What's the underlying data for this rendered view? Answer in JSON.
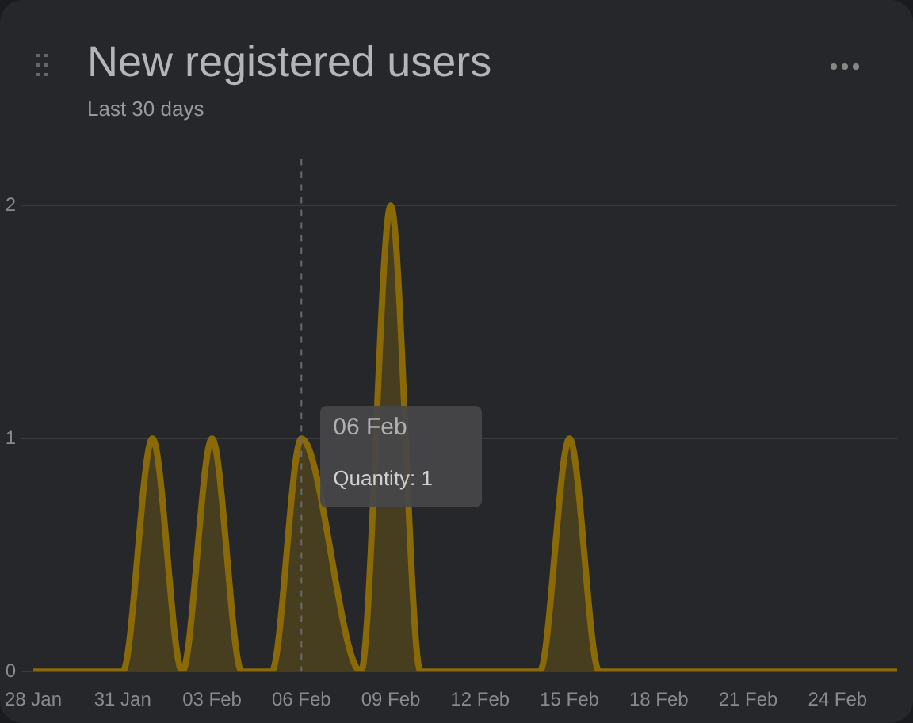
{
  "chart_data": {
    "type": "area",
    "title": "New registered users",
    "subtitle": "Last 30 days",
    "categories": [
      "28 Jan",
      null,
      null,
      "31 Jan",
      null,
      null,
      "03 Feb",
      null,
      null,
      "06 Feb",
      null,
      null,
      "09 Feb",
      null,
      null,
      "12 Feb",
      null,
      null,
      "15 Feb",
      null,
      null,
      "18 Feb",
      null,
      null,
      "21 Feb",
      null,
      null,
      "24 Feb",
      null,
      null
    ],
    "series": [
      {
        "color": "#8a6a08",
        "values": [
          0,
          0,
          0,
          0,
          1,
          0,
          1,
          0,
          0,
          1,
          null,
          0,
          2,
          0,
          0,
          0,
          0,
          0,
          1,
          0,
          0,
          0,
          0,
          0,
          0,
          0,
          0,
          0,
          0,
          0
        ]
      }
    ],
    "ylim": [
      0,
      2.2
    ],
    "yticks": [
      0,
      1,
      2
    ],
    "grid": "y",
    "legend": false,
    "marker": "none",
    "line_style": "solid",
    "ref_lines": [
      {
        "axis": "x",
        "value": "06 Feb",
        "color": "#6a6a6a",
        "line_style": "dashed"
      }
    ],
    "annotations": [
      {
        "text": "06 Feb",
        "x": "06 Feb",
        "y": 1
      },
      {
        "text": "Quantity: 1",
        "x": "06 Feb",
        "y": 1
      }
    ]
  }
}
